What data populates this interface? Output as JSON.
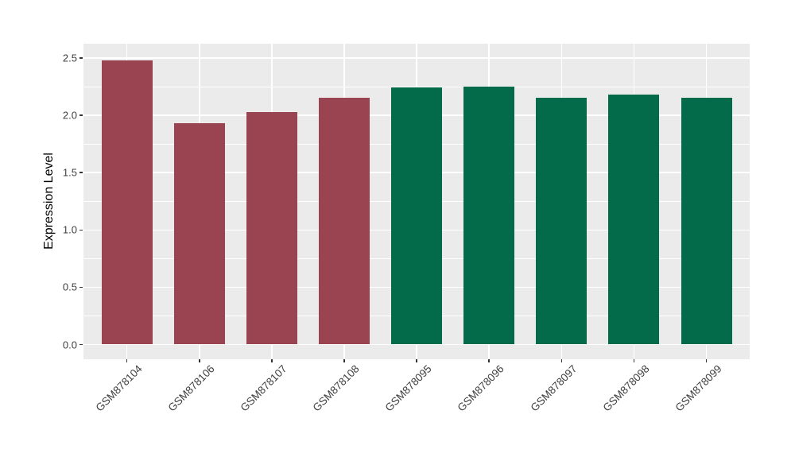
{
  "chart_data": {
    "type": "bar",
    "title": "",
    "xlabel": "",
    "ylabel": "Expression Level",
    "categories": [
      "GSM878104",
      "GSM878106",
      "GSM878107",
      "GSM878108",
      "GSM878095",
      "GSM878096",
      "GSM878097",
      "GSM878098",
      "GSM878099"
    ],
    "values": [
      2.48,
      1.93,
      2.03,
      2.15,
      2.24,
      2.25,
      2.15,
      2.18,
      2.15
    ],
    "bar_colors": [
      "#9A4451",
      "#9A4451",
      "#9A4451",
      "#9A4451",
      "#046B4A",
      "#046B4A",
      "#046B4A",
      "#046B4A",
      "#046B4A"
    ],
    "ylim": [
      0,
      2.5
    ],
    "yticks": [
      0,
      0.5,
      1,
      1.5,
      2,
      2.5
    ],
    "ytick_labels": [
      "0.0",
      "0.5",
      "1.0",
      "1.5",
      "2.0",
      "2.5"
    ],
    "yticks_minor": [
      0.25,
      0.75,
      1.25,
      1.75,
      2.25
    ],
    "grid": "white major and minor horizontal lines, white vertical line at each category center",
    "legend": "none",
    "style": {
      "panel_bg": "#EBEBEB",
      "grid_color": "#FFFFFF",
      "axis_text_color": "#404040",
      "axis_title_color": "#000000",
      "page_bg": "#FFFFFF",
      "x_label_rotation_deg": 45
    }
  }
}
